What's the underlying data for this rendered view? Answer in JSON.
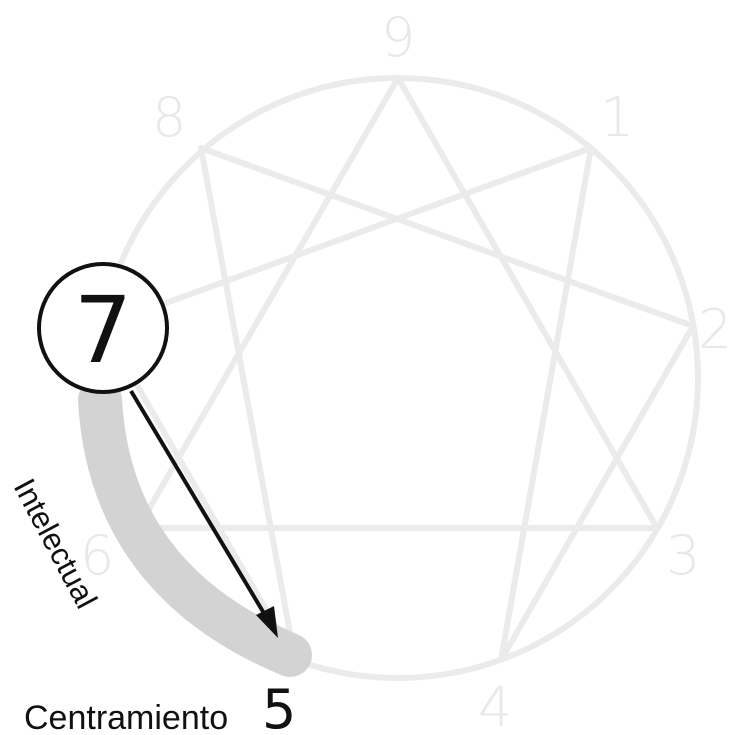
{
  "diagram": {
    "numbers": {
      "n1": "1",
      "n2": "2",
      "n3": "3",
      "n4": "4",
      "n5": "5",
      "n6": "6",
      "n7": "7",
      "n8": "8",
      "n9": "9"
    },
    "labels": {
      "arc_label": "Intelectual",
      "bottom_label": "Centramiento"
    },
    "colors": {
      "faint_lines": "#ebebeb",
      "highlight_arc": "#d3d3d3",
      "arrow": "#111111",
      "circle_outline": "#111111"
    }
  }
}
